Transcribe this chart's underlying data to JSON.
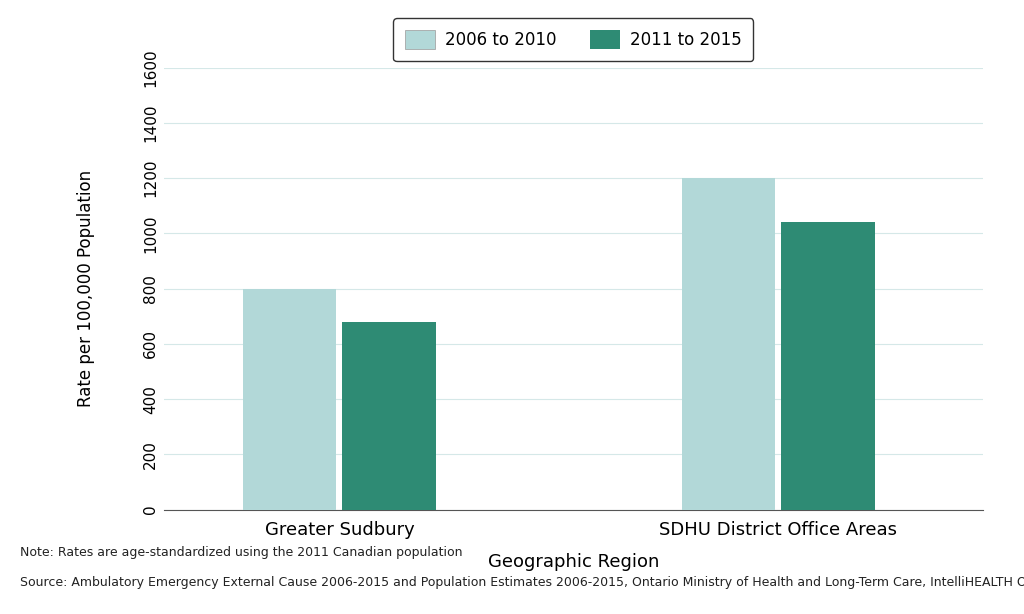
{
  "categories": [
    "Greater Sudbury",
    "SDHU District Office Areas"
  ],
  "series": {
    "2006 to 2010": [
      800,
      1200
    ],
    "2011 to 2015": [
      680,
      1040
    ]
  },
  "colors": {
    "2006 to 2010": "#b2d8d8",
    "2011 to 2015": "#2e8b74"
  },
  "ylabel": "Rate per 100,000 Population",
  "xlabel": "Geographic Region",
  "ylim": [
    0,
    1600
  ],
  "yticks": [
    0,
    200,
    400,
    600,
    800,
    1000,
    1200,
    1400,
    1600
  ],
  "bar_width": 0.32,
  "note_line1": "Note: Rates are age-standardized using the 2011 Canadian population",
  "note_line2": "Source: Ambulatory Emergency External Cause 2006-2015 and Population Estimates 2006-2015, Ontario Ministry of Health and Long-Term Care, IntelliHEALTH Ontario",
  "legend_labels": [
    "2006 to 2010",
    "2011 to 2015"
  ],
  "background_color": "#ffffff",
  "grid_color": "#d5e8e8"
}
